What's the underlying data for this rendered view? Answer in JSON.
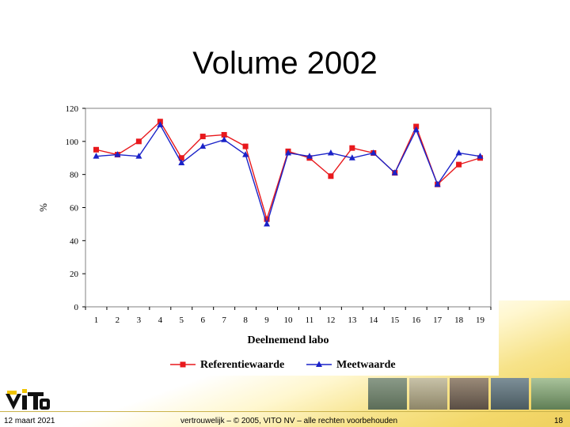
{
  "slide": {
    "title": "Volume 2002",
    "footer_date": "12 maart 2021",
    "footer_copyright": "vertrouwelijk – © 2005, VITO NV – alle rechten voorbehouden",
    "page_number": "18"
  },
  "colors": {
    "referentie": "#e8181c",
    "meet": "#1a22c8",
    "logo_yellow": "#f0c400"
  },
  "chart_data": {
    "type": "line",
    "title": "",
    "xlabel": "Deelnemend labo",
    "ylabel": "%",
    "x": [
      1,
      2,
      3,
      4,
      5,
      6,
      7,
      8,
      9,
      10,
      11,
      12,
      13,
      14,
      15,
      16,
      17,
      18,
      19
    ],
    "ylim": [
      0,
      120
    ],
    "yticks": [
      0,
      20,
      40,
      60,
      80,
      100,
      120
    ],
    "grid": false,
    "legend": "bottom",
    "series": [
      {
        "name": "Referentiewaarde",
        "marker": "square",
        "values": [
          95,
          92,
          100,
          112,
          90,
          103,
          104,
          97,
          53,
          94,
          90,
          79,
          96,
          93,
          81,
          109,
          74,
          86,
          90
        ]
      },
      {
        "name": "Meetwaarde",
        "marker": "triangle",
        "values": [
          91,
          92,
          91,
          110,
          87,
          97,
          101,
          92,
          50,
          93,
          91,
          93,
          90,
          93,
          81,
          107,
          74,
          93,
          91
        ]
      }
    ]
  }
}
